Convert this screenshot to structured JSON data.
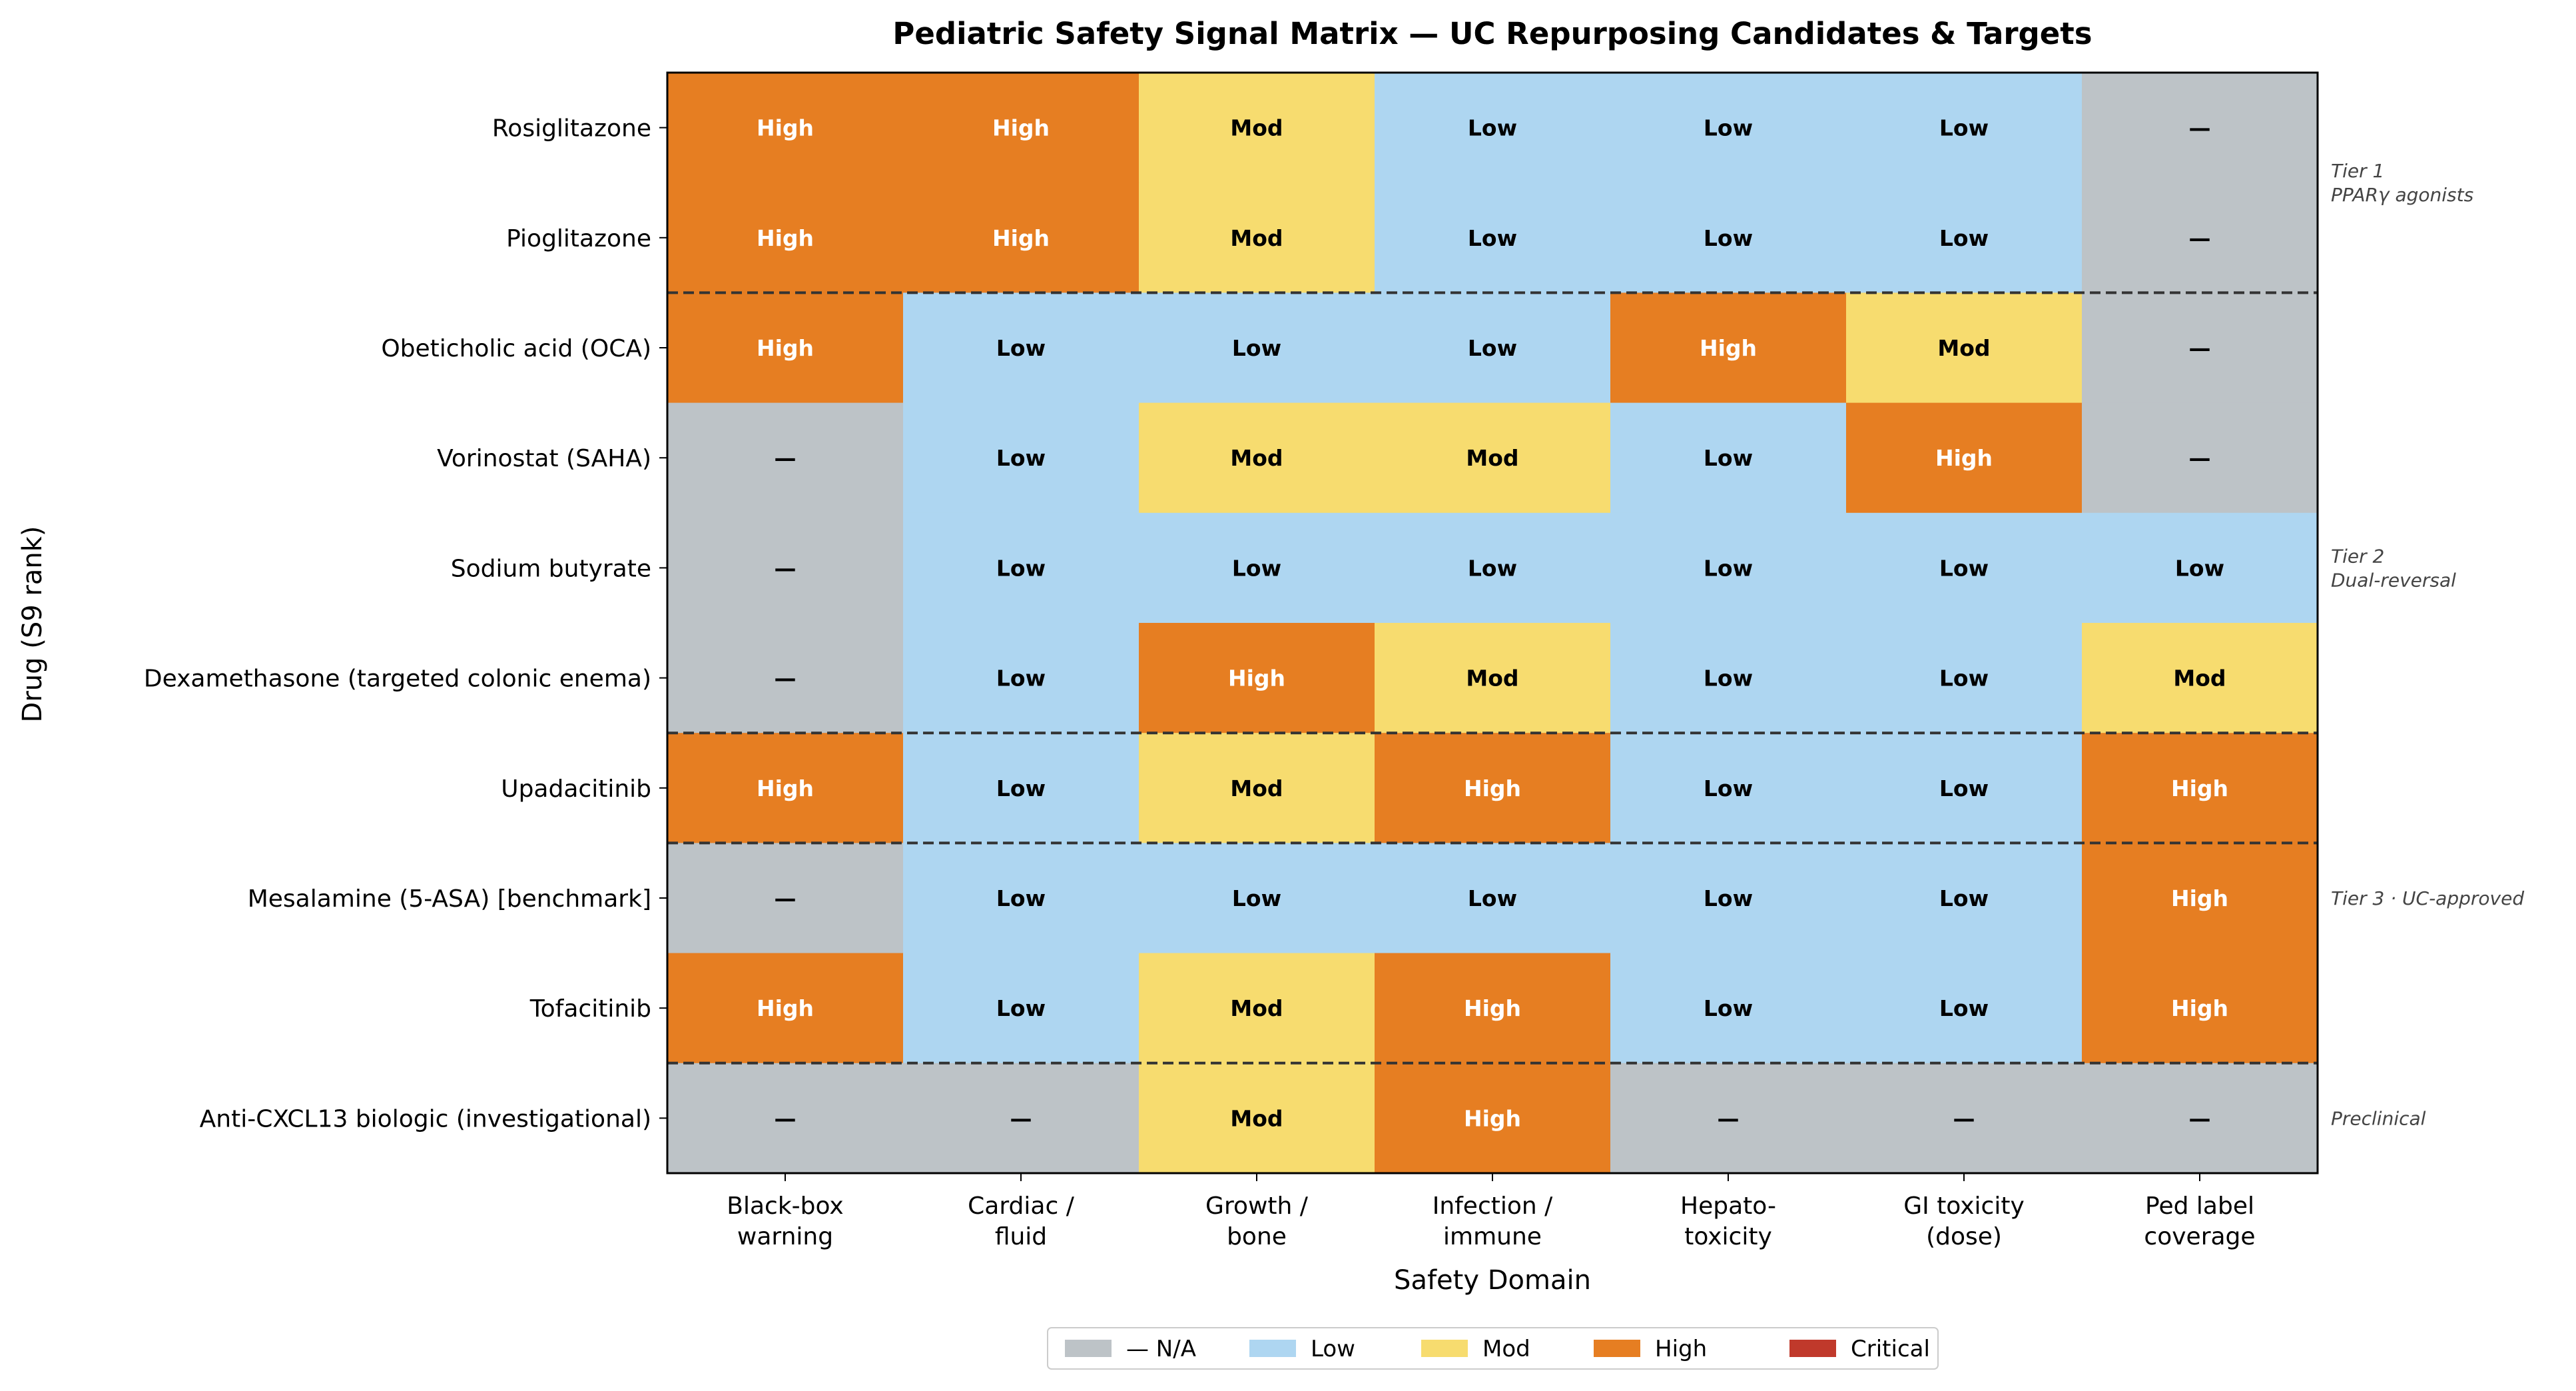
{
  "chart_data": {
    "type": "heatmap",
    "title": "Pediatric Safety Signal Matrix — UC Repurposing Candidates & Targets",
    "xlabel": "Safety Domain",
    "ylabel": "Drug (S9 rank)",
    "columns": [
      [
        "Black-box",
        "warning"
      ],
      [
        "Cardiac /",
        "fluid"
      ],
      [
        "Growth /",
        "bone"
      ],
      [
        "Infection /",
        "immune"
      ],
      [
        "Hepato-",
        "toxicity"
      ],
      [
        "GI toxicity",
        "(dose)"
      ],
      [
        "Ped label",
        "coverage"
      ]
    ],
    "rows": [
      "Rosiglitazone",
      "Pioglitazone",
      "Obeticholic acid (OCA)",
      "Vorinostat (SAHA)",
      "Sodium butyrate",
      "Dexamethasone (targeted colonic enema)",
      "Upadacitinib",
      "Mesalamine (5-ASA) [benchmark]",
      "Tofacitinib",
      "Anti-CXCL13 biologic (investigational)"
    ],
    "values": [
      [
        "High",
        "High",
        "Mod",
        "Low",
        "Low",
        "Low",
        "—"
      ],
      [
        "High",
        "High",
        "Mod",
        "Low",
        "Low",
        "Low",
        "—"
      ],
      [
        "High",
        "Low",
        "Low",
        "Low",
        "High",
        "Mod",
        "—"
      ],
      [
        "—",
        "Low",
        "Mod",
        "Mod",
        "Low",
        "High",
        "—"
      ],
      [
        "—",
        "Low",
        "Low",
        "Low",
        "Low",
        "Low",
        "Low"
      ],
      [
        "—",
        "Low",
        "High",
        "Mod",
        "Low",
        "Low",
        "Mod"
      ],
      [
        "High",
        "Low",
        "Mod",
        "High",
        "Low",
        "Low",
        "High"
      ],
      [
        "—",
        "Low",
        "Low",
        "Low",
        "Low",
        "Low",
        "High"
      ],
      [
        "High",
        "Low",
        "Mod",
        "High",
        "Low",
        "Low",
        "High"
      ],
      [
        "—",
        "—",
        "Mod",
        "High",
        "—",
        "—",
        "—"
      ]
    ],
    "tiers": [
      {
        "lines": [
          "Tier 1",
          "PPARγ agonists"
        ],
        "rows": [
          0,
          1
        ]
      },
      {
        "lines": [
          "Tier 2",
          "Dual-reversal"
        ],
        "rows": [
          2,
          6
        ]
      },
      {
        "lines": [
          "Tier 3 · UC-approved"
        ],
        "rows": [
          7,
          7
        ]
      },
      {
        "lines": [
          "Preclinical"
        ],
        "rows": [
          9,
          9
        ]
      }
    ],
    "group_separators_after_rows": [
      1,
      5,
      6,
      8
    ],
    "levels": {
      "—": {
        "label": "— N/A",
        "color": "#bdc3c7",
        "text_color": "#000000"
      },
      "Low": {
        "label": "Low",
        "color": "#aed6f1",
        "text_color": "#000000"
      },
      "Mod": {
        "label": "Mod",
        "color": "#f7dc6f",
        "text_color": "#000000"
      },
      "High": {
        "label": "High",
        "color": "#e67e22",
        "text_color": "#ffffff"
      },
      "Critical": {
        "label": "Critical",
        "color": "#c0392b",
        "text_color": "#ffffff"
      }
    },
    "legend_order": [
      "—",
      "Low",
      "Mod",
      "High",
      "Critical"
    ],
    "legend_placement": "bottom-center"
  }
}
